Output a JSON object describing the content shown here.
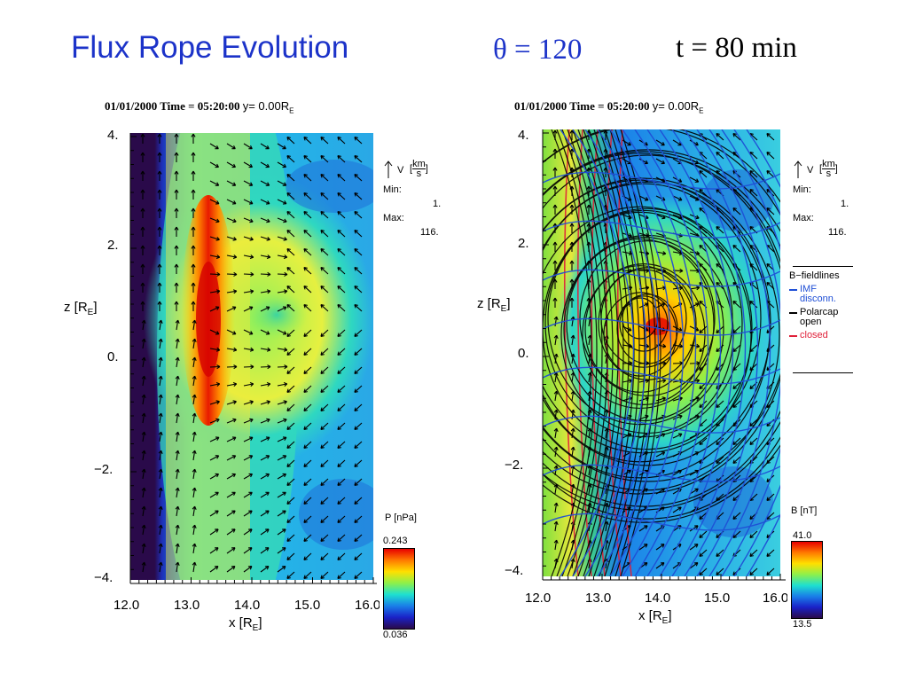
{
  "slide": {
    "title": "Flux Rope Evolution",
    "theta": "θ = 120",
    "time": "t = 80 min"
  },
  "panels": [
    {
      "id": "pressure",
      "header": "01/01/2000 Time = 05:20:00",
      "header_y": "y= 0.00R",
      "header_y_sub": "E",
      "x_ticks": [
        "12.0",
        "13.0",
        "14.0",
        "15.0",
        "16.0"
      ],
      "y_ticks": [
        "4.",
        "2.",
        "0.",
        "−2.",
        "−4."
      ],
      "x_label": "x [R",
      "x_label_sub": "E",
      "x_label_end": "]",
      "y_label": "z [R",
      "y_label_sub": "E",
      "y_label_end": "]",
      "vector_legend": {
        "symbol": "V",
        "unit_num": "km",
        "unit_den": "s",
        "min_label": "Min:",
        "min_value": "1.",
        "max_label": "Max:",
        "max_value": "116."
      },
      "colorbar": {
        "label": "P [nPa]",
        "max": "0.243",
        "min": "0.036"
      }
    },
    {
      "id": "magnetic",
      "header": "01/01/2000 Time = 05:20:00",
      "header_y": "y= 0.00R",
      "header_y_sub": "E",
      "x_ticks": [
        "12.0",
        "13.0",
        "14.0",
        "15.0",
        "16.0"
      ],
      "y_ticks": [
        "4.",
        "2.",
        "0.",
        "−2.",
        "−4."
      ],
      "x_label": "x [R",
      "x_label_sub": "E",
      "x_label_end": "]",
      "y_label": "z [R",
      "y_label_sub": "E",
      "y_label_end": "]",
      "vector_legend": {
        "symbol": "V",
        "unit_num": "km",
        "unit_den": "s",
        "min_label": "Min:",
        "min_value": "1.",
        "max_label": "Max:",
        "max_value": "116."
      },
      "fieldline_legend": {
        "title": "B−fieldlines",
        "items": [
          {
            "line1": "IMF",
            "line2": "disconn.",
            "color": "#1f4fd6"
          },
          {
            "line1": "Polarcap",
            "line2": "open",
            "color": "#000000"
          },
          {
            "line1": "closed",
            "line2": "",
            "color": "#e0213a"
          }
        ]
      },
      "colorbar": {
        "label": "B [nT]",
        "max": "41.0",
        "min": "13.5"
      }
    }
  ]
}
